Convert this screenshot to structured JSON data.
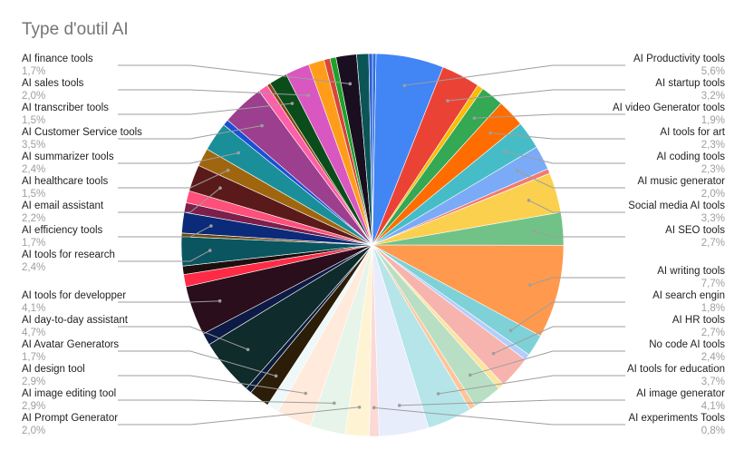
{
  "chart_data": {
    "type": "pie",
    "title": "Type d'outil AI",
    "categories": [
      null,
      "AI Productivity tools",
      "AI startup tools",
      null,
      "AI video Generator tools",
      "AI tools for art",
      "AI coding tools",
      "AI music generator",
      null,
      "Social media AI tools",
      "AI SEO tools",
      "AI writing tools",
      "AI search engin",
      null,
      "AI HR tools",
      null,
      "No code AI tools",
      null,
      "AI tools for education",
      "AI image generator",
      "AI experiments Tools",
      "AI Prompt Generator",
      "AI image editing tool",
      "AI design tool",
      null,
      "AI Avatar Generators",
      null,
      "AI day-to-day assistant",
      null,
      "AI tools for developper",
      null,
      null,
      "AI tools for research",
      null,
      "AI efficiency tools",
      null,
      null,
      "AI email assistant",
      "AI healthcare tools",
      "AI summarizer tools",
      null,
      "AI Customer Service tools",
      null,
      null,
      "AI transcriber tools",
      "AI sales tools",
      null,
      null,
      null,
      "AI finance tools",
      null,
      null
    ],
    "values": [
      0.3,
      5.6,
      3.2,
      0.5,
      1.9,
      2.3,
      2.3,
      2.0,
      0.4,
      3.3,
      2.7,
      7.7,
      1.8,
      0.5,
      2.7,
      0.5,
      2.4,
      0.5,
      3.7,
      4.1,
      0.8,
      2.0,
      2.9,
      2.9,
      1.0,
      1.7,
      0.5,
      4.7,
      1.0,
      4.1,
      1.0,
      0.7,
      2.4,
      0.3,
      1.7,
      0.8,
      1.0,
      2.2,
      1.5,
      2.4,
      0.5,
      3.5,
      0.8,
      0.3,
      1.5,
      2.0,
      1.3,
      0.5,
      0.5,
      1.7,
      1.0,
      0.3
    ],
    "value_labels": [
      null,
      "5,6%",
      "3,2%",
      null,
      "1,9%",
      "2,3%",
      "2,3%",
      "2,0%",
      null,
      "3,3%",
      "2,7%",
      "7,7%",
      "1,8%",
      null,
      "2,7%",
      null,
      "2,4%",
      null,
      "3,7%",
      "4,1%",
      "0,8%",
      "2,0%",
      "2,9%",
      "2,9%",
      null,
      "1,7%",
      null,
      "4,7%",
      null,
      "4,1%",
      null,
      null,
      "2,4%",
      null,
      "1,7%",
      null,
      null,
      "2,2%",
      "1,5%",
      "2,4%",
      null,
      "3,5%",
      null,
      null,
      "1,5%",
      "2,0%",
      null,
      null,
      null,
      "1,7%",
      null,
      null
    ],
    "colors": [
      "#2f6fe0",
      "#4285f4",
      "#ea4335",
      "#fbbc04",
      "#34a853",
      "#ff6d01",
      "#46bdc6",
      "#7baaf7",
      "#f07b72",
      "#fcd04f",
      "#71c287",
      "#ff994d",
      "#7ed1d7",
      "#b3cefb",
      "#f7b4ae",
      "#fde49b",
      "#b8dfc3",
      "#ffc599",
      "#b5e5e8",
      "#e8edfc",
      "#fbd9d6",
      "#fef4d4",
      "#e6f4ea",
      "#ffeadb",
      "#eef8f9",
      "#2b1d08",
      "#0a1d3b",
      "#0f2b2b",
      "#0c1a45",
      "#2a0e1c",
      "#ff2a45",
      "#1e0f0f",
      "#0b5560",
      "#6b4a14",
      "#0b2a7a",
      "#7b1f4b",
      "#ff4f7b",
      "#5b1a1a",
      "#a0660f",
      "#1a8f99",
      "#1a4fd6",
      "#9c3f8e",
      "#ff5fa8",
      "#8b4513",
      "#0b4d1a",
      "#d957c0",
      "#ff9d1a",
      "#d9453a",
      "#1fa22b",
      "#1a0f20",
      "#0b5556",
      "#2b5fd9"
    ]
  }
}
